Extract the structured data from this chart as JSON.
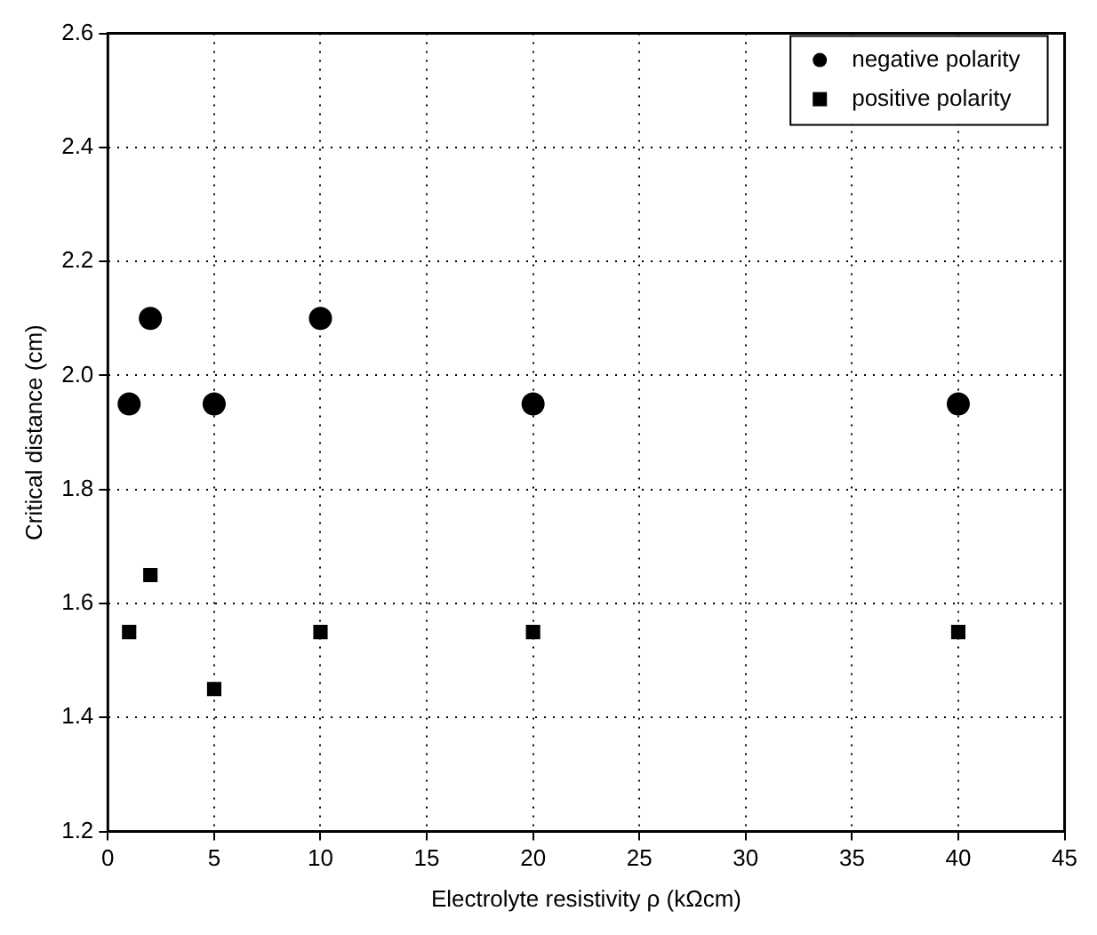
{
  "chart_data": {
    "type": "scatter",
    "xlabel": "Electrolyte resistivity ρ (kΩcm)",
    "ylabel": "Critical distance (cm)",
    "x": [
      1,
      2,
      5,
      10,
      20,
      40
    ],
    "series": [
      {
        "name": "negative polarity",
        "color": "#000000",
        "marker": "circle",
        "values": [
          1.95,
          2.1,
          1.95,
          2.1,
          1.95,
          1.95
        ]
      },
      {
        "name": "positive polarity",
        "color": "#000000",
        "marker": "square",
        "values": [
          1.55,
          1.65,
          1.45,
          1.55,
          1.55,
          1.55
        ]
      }
    ],
    "xlim": [
      0,
      45
    ],
    "xticks": [
      0,
      5,
      10,
      15,
      20,
      25,
      30,
      35,
      40,
      45
    ],
    "ylim": [
      1.2,
      2.6
    ],
    "yticks": [
      1.2,
      1.4,
      1.6,
      1.8,
      {
        "value": 2,
        "label": "2.0"
      },
      2.2,
      2.4,
      2.6
    ],
    "grid": true,
    "legend": "top right"
  }
}
